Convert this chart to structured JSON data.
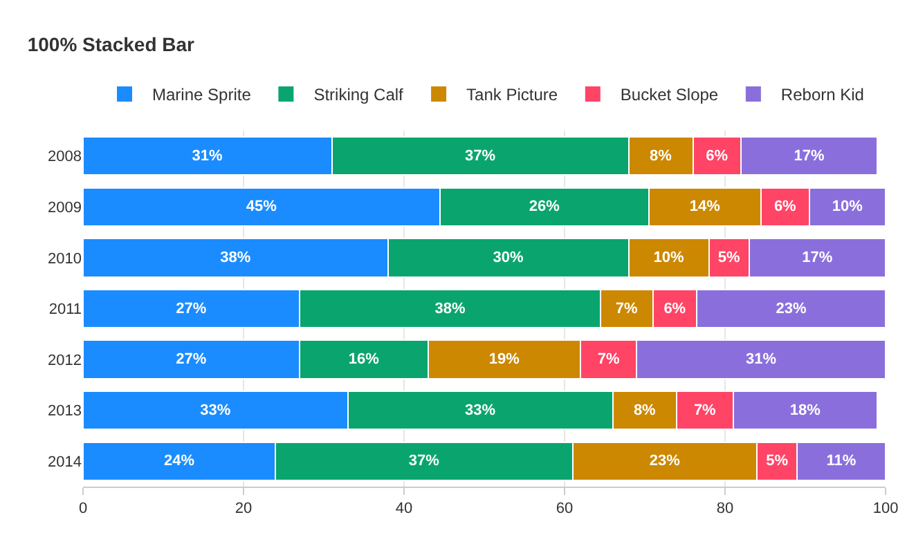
{
  "chart_data": {
    "type": "bar",
    "title": "100% Stacked Bar",
    "orientation": "horizontal",
    "stacked": true,
    "categories": [
      "2008",
      "2009",
      "2010",
      "2011",
      "2012",
      "2013",
      "2014"
    ],
    "series": [
      {
        "name": "Marine Sprite",
        "color": "#1a8cff",
        "values": [
          31,
          44.5,
          38,
          27,
          27,
          33,
          24
        ],
        "value_labels": [
          "31%",
          "45%",
          "38%",
          "27%",
          "27%",
          "33%",
          "24%"
        ]
      },
      {
        "name": "Striking Calf",
        "color": "#0aa56e",
        "values": [
          37,
          26,
          30,
          37.5,
          16,
          33,
          37
        ],
        "value_labels": [
          "37%",
          "26%",
          "30%",
          "38%",
          "16%",
          "33%",
          "37%"
        ]
      },
      {
        "name": "Tank Picture",
        "color": "#cc8800",
        "values": [
          8,
          14,
          10,
          6.5,
          19,
          8,
          23
        ],
        "value_labels": [
          "8%",
          "14%",
          "10%",
          "7%",
          "19%",
          "8%",
          "23%"
        ]
      },
      {
        "name": "Bucket Slope",
        "color": "#ff4466",
        "values": [
          6,
          6,
          5,
          5.5,
          7,
          7,
          5
        ],
        "value_labels": [
          "6%",
          "6%",
          "5%",
          "6%",
          "7%",
          "7%",
          "5%"
        ]
      },
      {
        "name": "Reborn Kid",
        "color": "#8a6fdc",
        "values": [
          17,
          9.5,
          17,
          23.5,
          31,
          18,
          11
        ],
        "value_labels": [
          "17%",
          "10%",
          "17%",
          "23%",
          "31%",
          "18%",
          "11%"
        ]
      }
    ],
    "xlim": [
      0,
      100
    ],
    "xticks": [
      0,
      20,
      40,
      60,
      80,
      100
    ],
    "grid": "x",
    "legend": "top"
  }
}
